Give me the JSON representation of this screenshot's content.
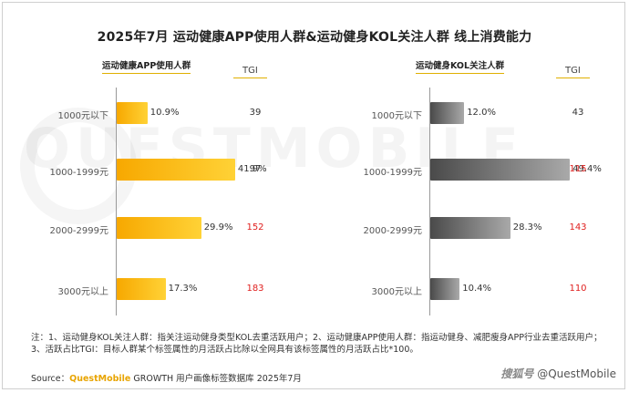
{
  "title": "2025年7月 运动健康APP使用人群&运动健身KOL关注人群  线上消费能力",
  "tgi_label": "TGI",
  "watermark": "QUESTMOBILE",
  "chart_data": [
    {
      "type": "bar",
      "title": "运动健康APP使用人群",
      "categories": [
        "1000元以下",
        "1000-1999元",
        "2000-2999元",
        "3000元以上"
      ],
      "values": [
        10.9,
        41.9,
        29.9,
        17.3
      ],
      "value_labels": [
        "10.9%",
        "41.9%",
        "29.9%",
        "17.3%"
      ],
      "tgi": [
        "39",
        "97",
        "152",
        "183"
      ],
      "tgi_highlight": [
        false,
        false,
        true,
        true
      ],
      "color": "#f9b400"
    },
    {
      "type": "bar",
      "title": "运动健身KOL关注人群",
      "categories": [
        "1000元以下",
        "1000-1999元",
        "2000-2999元",
        "3000元以上"
      ],
      "values": [
        12.0,
        49.4,
        28.3,
        10.4
      ],
      "value_labels": [
        "12.0%",
        "49.4%",
        "28.3%",
        "10.4%"
      ],
      "tgi": [
        "43",
        "115",
        "143",
        "110"
      ],
      "tgi_highlight": [
        false,
        true,
        true,
        true
      ],
      "color": "#6e6e6e"
    }
  ],
  "note": "注：1、运动健身KOL关注人群：指关注运动健身类型KOL去重活跃用户；2、运动健康APP使用人群：指运动健身、减肥瘦身APP行业去重活跃用户；3、活跃占比TGI：目标人群某个标签属性的月活跃占比除以全网具有该标签属性的月活跃占比*100。",
  "source": {
    "prefix": "Source：",
    "brand": "QuestMobile",
    "rest": " GROWTH 用户画像标签数据库 2025年7月"
  },
  "credit": {
    "mark": "搜狐号",
    "handle": "@QuestMobile"
  }
}
